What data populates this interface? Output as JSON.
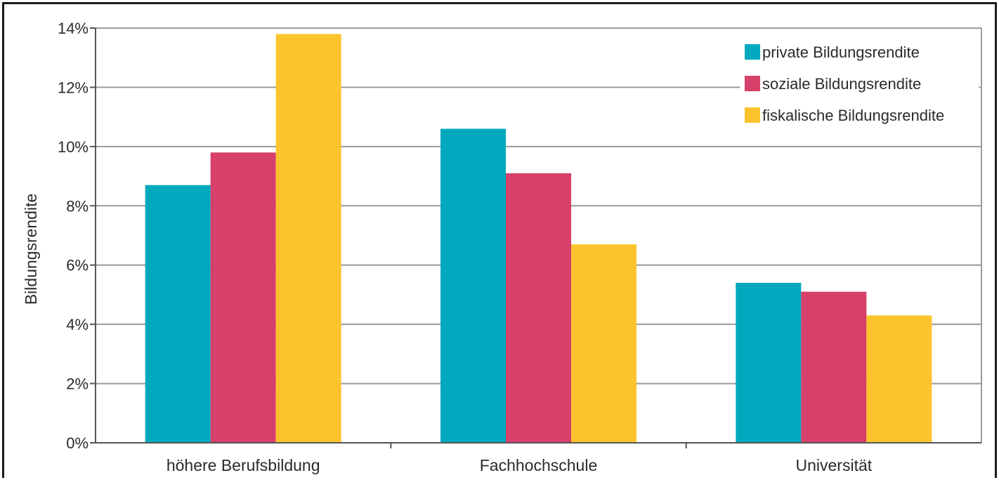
{
  "chart_data": {
    "type": "bar",
    "title": "",
    "xlabel": "",
    "ylabel": "Bildungsrendite",
    "ylim": [
      0,
      14
    ],
    "yticks": [
      0,
      2,
      4,
      6,
      8,
      10,
      12,
      14
    ],
    "ytick_labels": [
      "0%",
      "2%",
      "4%",
      "6%",
      "8%",
      "10%",
      "12%",
      "14%"
    ],
    "grid": true,
    "legend_position": "top-right",
    "categories": [
      "höhere Berufsbildung",
      "Fachhochschule",
      "Universität"
    ],
    "series": [
      {
        "name": "private Bildungsrendite",
        "color": "#00a9bd",
        "values": [
          8.7,
          10.6,
          5.4
        ]
      },
      {
        "name": "soziale Bildungsrendite",
        "color": "#d6406a",
        "values": [
          9.8,
          9.1,
          5.1
        ]
      },
      {
        "name": "fiskalische Bildungsrendite",
        "color": "#fcc42c",
        "values": [
          13.8,
          6.7,
          4.3
        ]
      }
    ]
  }
}
